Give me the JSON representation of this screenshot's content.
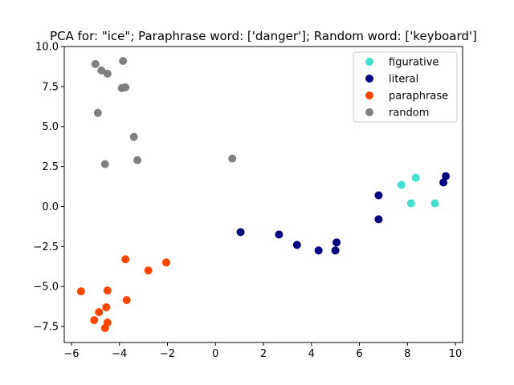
{
  "chart_data": {
    "type": "scatter",
    "title": "PCA for: \"ice\"; Paraphrase word: ['danger']; Random word: ['keyboard']",
    "xlabel": "",
    "ylabel": "",
    "xlim": [
      -6.3,
      10.3
    ],
    "ylim": [
      -8.5,
      10.0
    ],
    "xticks": [
      -6,
      -4,
      -2,
      0,
      2,
      4,
      6,
      8,
      10
    ],
    "yticks": [
      -7.5,
      -5.0,
      -2.5,
      0.0,
      2.5,
      5.0,
      7.5,
      10.0
    ],
    "xtick_labels": [
      "−6",
      "−4",
      "−2",
      "0",
      "2",
      "4",
      "6",
      "8",
      "10"
    ],
    "ytick_labels": [
      "−7.5",
      "−5.0",
      "−2.5",
      "0.0",
      "2.5",
      "5.0",
      "7.5",
      "10.0"
    ],
    "grid": false,
    "legend_position": "top-right",
    "series": [
      {
        "name": "figurative",
        "color": "#40e0d0",
        "points": [
          [
            7.75,
            1.35
          ],
          [
            8.35,
            1.8
          ],
          [
            8.15,
            0.2
          ],
          [
            9.15,
            0.2
          ]
        ]
      },
      {
        "name": "literal",
        "color": "#000080",
        "points": [
          [
            9.6,
            1.9
          ],
          [
            9.5,
            1.5
          ],
          [
            6.8,
            0.7
          ],
          [
            6.8,
            -0.8
          ],
          [
            1.05,
            -1.6
          ],
          [
            2.65,
            -1.75
          ],
          [
            3.4,
            -2.4
          ],
          [
            4.3,
            -2.75
          ],
          [
            5.0,
            -2.75
          ],
          [
            5.05,
            -2.25
          ]
        ]
      },
      {
        "name": "paraphrase",
        "color": "#ff4500",
        "points": [
          [
            -3.75,
            -3.3
          ],
          [
            -2.05,
            -3.5
          ],
          [
            -2.8,
            -4.0
          ],
          [
            -5.6,
            -5.3
          ],
          [
            -4.5,
            -5.25
          ],
          [
            -3.7,
            -5.85
          ],
          [
            -4.55,
            -6.3
          ],
          [
            -4.85,
            -6.6
          ],
          [
            -5.05,
            -7.1
          ],
          [
            -4.5,
            -7.25
          ],
          [
            -4.6,
            -7.6
          ]
        ]
      },
      {
        "name": "random",
        "color": "#808080",
        "points": [
          [
            -5.0,
            8.9
          ],
          [
            -3.85,
            9.1
          ],
          [
            -4.75,
            8.5
          ],
          [
            -4.5,
            8.3
          ],
          [
            -3.9,
            7.4
          ],
          [
            -3.75,
            7.45
          ],
          [
            -4.9,
            5.85
          ],
          [
            -3.4,
            4.35
          ],
          [
            -4.6,
            2.65
          ],
          [
            -3.25,
            2.9
          ],
          [
            0.7,
            3.0
          ]
        ]
      }
    ]
  }
}
